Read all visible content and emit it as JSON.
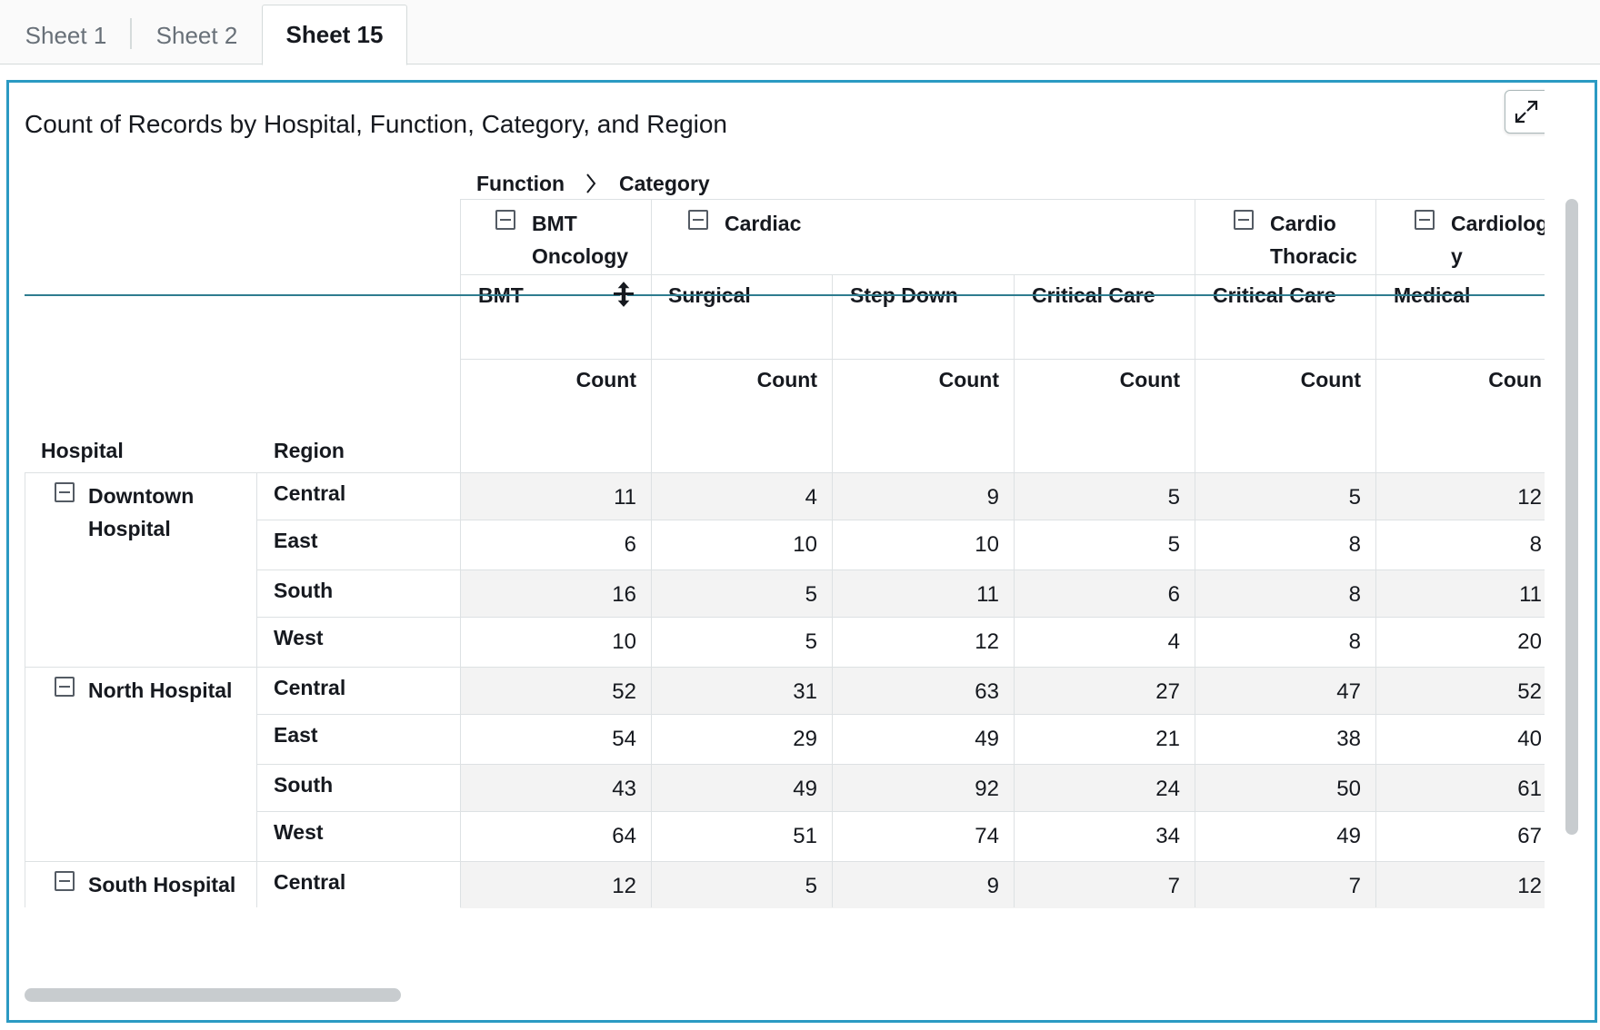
{
  "tabs": [
    {
      "label": "Sheet 1"
    },
    {
      "label": "Sheet 2"
    },
    {
      "label": "Sheet 15"
    }
  ],
  "visual": {
    "title": "Count of Records by Hospital, Function, Category, and Region",
    "breadcrumb": [
      "Function",
      "Category"
    ],
    "row_headers": [
      "Hospital",
      "Region"
    ],
    "functions": [
      {
        "label_line1": "BMT",
        "label_line2": "Oncology"
      },
      {
        "label_line1": "Cardiac",
        "label_line2": ""
      },
      {
        "label_line1": "Cardio",
        "label_line2": "Thoracic"
      },
      {
        "label_line1": "Cardiolog",
        "label_line2": "y"
      }
    ],
    "categories": [
      "BMT",
      "Surgical",
      "Step Down",
      "Critical Care",
      "Critical Care",
      "Medical"
    ],
    "measure_label": "Count",
    "measure_labels": [
      "Count",
      "Count",
      "Count",
      "Count",
      "Count",
      "Coun"
    ],
    "hospitals": [
      {
        "name_line1": "Downtown",
        "name_line2": "Hospital"
      },
      {
        "name_line1": "North Hospital",
        "name_line2": ""
      },
      {
        "name_line1": "South Hospital",
        "name_line2": ""
      }
    ],
    "rows": [
      {
        "region": "Central",
        "values": [
          "11",
          "4",
          "9",
          "5",
          "5",
          "12"
        ]
      },
      {
        "region": "East",
        "values": [
          "6",
          "10",
          "10",
          "5",
          "8",
          "8"
        ]
      },
      {
        "region": "South",
        "values": [
          "16",
          "5",
          "11",
          "6",
          "8",
          "11"
        ]
      },
      {
        "region": "West",
        "values": [
          "10",
          "5",
          "12",
          "4",
          "8",
          "20"
        ]
      },
      {
        "region": "Central",
        "values": [
          "52",
          "31",
          "63",
          "27",
          "47",
          "52"
        ]
      },
      {
        "region": "East",
        "values": [
          "54",
          "29",
          "49",
          "21",
          "38",
          "40"
        ]
      },
      {
        "region": "South",
        "values": [
          "43",
          "49",
          "92",
          "24",
          "50",
          "61"
        ]
      },
      {
        "region": "West",
        "values": [
          "64",
          "51",
          "74",
          "34",
          "49",
          "67"
        ]
      },
      {
        "region": "Central",
        "values": [
          "12",
          "5",
          "9",
          "7",
          "7",
          "12"
        ]
      }
    ]
  },
  "icons": {
    "expand": "expand-icon",
    "more": "more-vertical-icon",
    "chevron": "chevron-right-icon",
    "collapse": "collapse-minus-icon",
    "cursor": "resize-vertical-cursor-icon"
  },
  "colors": {
    "accent": "#2b9ac3",
    "drag_line": "#2e7c8f",
    "row_shade": "#f3f3f3"
  }
}
